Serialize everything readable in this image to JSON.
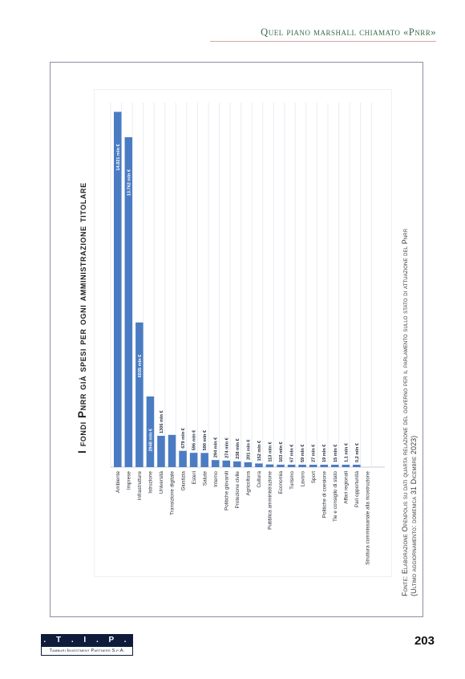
{
  "header": {
    "running_title": "Quel piano marshall chiamato «Pnrr»"
  },
  "figure": {
    "title": "I fondi Pnrr già spesi per ogni amministrazione titolare",
    "source_line1": "Fonte: Elaborazione Openpolis su dati quarta relazione del governo per il parlamento sullo stato di attuazione del Pnrr",
    "source_line2": "(Ultimo aggiornamento: domenica 31 Dicembre 2023)"
  },
  "chart_data": {
    "type": "bar",
    "orientation": "horizontal",
    "title": "I fondi Pnrr già spesi per ogni amministrazione titolare",
    "xlabel": "",
    "ylabel": "",
    "categories": [
      "Ambiente",
      "Imprese",
      "Infrastrutture",
      "Istruzione",
      "Università",
      "Transizione digitale",
      "Giustizia",
      "Esteri",
      "Salute",
      "Interno",
      "Politiche giovanili",
      "Protezione civile",
      "Agricoltura",
      "Cultura",
      "Pubblica amministrazione",
      "Economia",
      "Turismo",
      "Lavoro",
      "Sport",
      "Politiche di coesione",
      "Tie e consiglio di stato",
      "Affari regionali",
      "Pari opportunità",
      "Struttura commissariale alla ricostruzione"
    ],
    "values": [
      14821,
      13762,
      6035,
      2948,
      1306,
      1344,
      679,
      596,
      590,
      294,
      274,
      238,
      201,
      152,
      113,
      103,
      67,
      59,
      27,
      19,
      15,
      1.1,
      0.2,
      0
    ],
    "value_labels": [
      "14.821 mln €",
      "13.762 mln €",
      "6035 mln €",
      "2948 mln €",
      "1306 mln €",
      "1.344 mln €",
      "679 mln €",
      "596 mln €",
      "590 mln €",
      "294 mln €",
      "274 mln €",
      "238 mln €",
      "201 mln €",
      "152 mln €",
      "113 mln €",
      "103 mln €",
      "67 mln €",
      "59 mln €",
      "27 mln €",
      "19 mln €",
      "15 mln €",
      "1,1 mln €",
      "0,2 mln €",
      ""
    ],
    "xlim": [
      0,
      15000
    ],
    "grid": true,
    "bar_color": "#4a7cc4"
  },
  "footer": {
    "logo_mark": ". T . I . P .",
    "logo_name": "Tamburi Investment Partners S.p.A.",
    "page_number": "203"
  }
}
